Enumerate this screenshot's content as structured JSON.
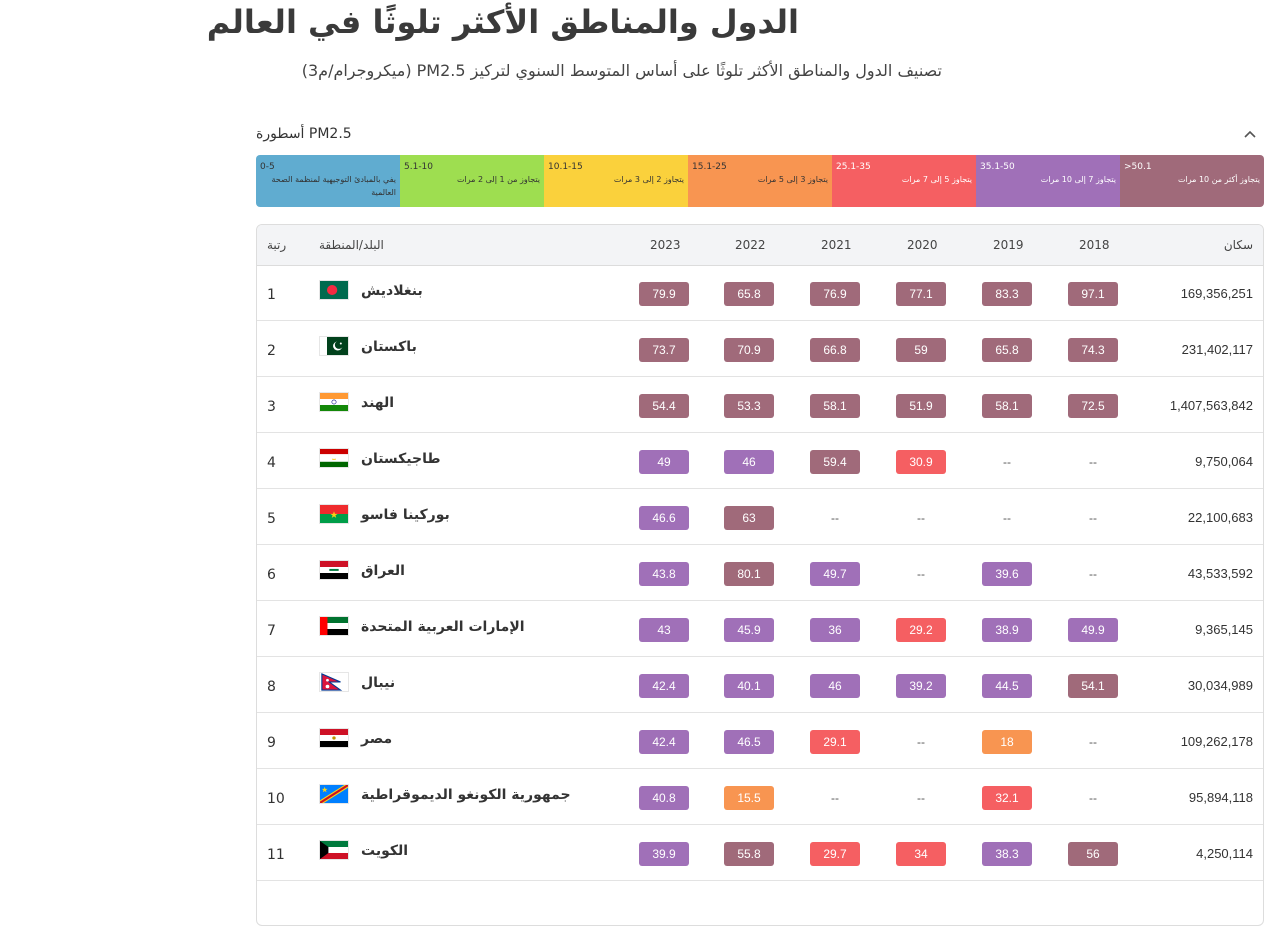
{
  "page": {
    "title": "الدول والمناطق الأكثر تلوثًا في العالم",
    "subtitle": "تصنيف الدول والمناطق الأكثر تلوثًا على أساس المتوسط السنوي لتركيز PM2.5 (ميكروجرام/م3)"
  },
  "legend": {
    "title": "PM2.5 أسطورة",
    "toggle_icon": "chevron-up-icon",
    "segments": [
      {
        "range": "0-5",
        "desc": "يفي بالمبادئ التوجيهية لمنظمة الصحة العالمية",
        "color": "#60acd0"
      },
      {
        "range": "5.1-10",
        "desc": "يتجاوز من 1 إلى 2 مرات",
        "color": "#9ede50"
      },
      {
        "range": "10.1-15",
        "desc": "يتجاوز 2 إلى 3 مرات",
        "color": "#fad13c"
      },
      {
        "range": "15.1-25",
        "desc": "يتجاوز 3 إلى 5 مرات",
        "color": "#f89551"
      },
      {
        "range": "25.1-35",
        "desc": "يتجاوز 5 إلى 7 مرات",
        "color": "#f55f62"
      },
      {
        "range": "35.1-50",
        "desc": "يتجاوز 7 إلى 10 مرات",
        "color": "#a070b8"
      },
      {
        "range": ">50.1",
        "desc": "يتجاوز أكثر من 10 مرات",
        "color": "#a06a7a"
      }
    ]
  },
  "table": {
    "headers": {
      "rank": "رتبة",
      "country": "البلد/المنطقة",
      "y2023": "2023",
      "y2022": "2022",
      "y2021": "2021",
      "y2020": "2020",
      "y2019": "2019",
      "y2018": "2018",
      "population": "سكان"
    },
    "rows": [
      {
        "rank": "1",
        "country": "بنغلاديش",
        "flag": "bangladesh-flag-icon",
        "values": [
          "79.9",
          "65.8",
          "76.9",
          "77.1",
          "83.3",
          "97.1"
        ],
        "population": "169,356,251"
      },
      {
        "rank": "2",
        "country": "باكستان",
        "flag": "pakistan-flag-icon",
        "values": [
          "73.7",
          "70.9",
          "66.8",
          "59",
          "65.8",
          "74.3"
        ],
        "population": "231,402,117"
      },
      {
        "rank": "3",
        "country": "الهند",
        "flag": "india-flag-icon",
        "values": [
          "54.4",
          "53.3",
          "58.1",
          "51.9",
          "58.1",
          "72.5"
        ],
        "population": "1,407,563,842"
      },
      {
        "rank": "4",
        "country": "طاجيكستان",
        "flag": "tajikistan-flag-icon",
        "values": [
          "49",
          "46",
          "59.4",
          "30.9",
          "--",
          "--"
        ],
        "population": "9,750,064"
      },
      {
        "rank": "5",
        "country": "بوركينا فاسو",
        "flag": "burkina-faso-flag-icon",
        "values": [
          "46.6",
          "63",
          "--",
          "--",
          "--",
          "--"
        ],
        "population": "22,100,683"
      },
      {
        "rank": "6",
        "country": "العراق",
        "flag": "iraq-flag-icon",
        "values": [
          "43.8",
          "80.1",
          "49.7",
          "--",
          "39.6",
          "--"
        ],
        "population": "43,533,592"
      },
      {
        "rank": "7",
        "country": "الإمارات العربية المتحدة",
        "flag": "uae-flag-icon",
        "values": [
          "43",
          "45.9",
          "36",
          "29.2",
          "38.9",
          "49.9"
        ],
        "population": "9,365,145"
      },
      {
        "rank": "8",
        "country": "نيبال",
        "flag": "nepal-flag-icon",
        "values": [
          "42.4",
          "40.1",
          "46",
          "39.2",
          "44.5",
          "54.1"
        ],
        "population": "30,034,989"
      },
      {
        "rank": "9",
        "country": "مصر",
        "flag": "egypt-flag-icon",
        "values": [
          "42.4",
          "46.5",
          "29.1",
          "--",
          "18",
          "--"
        ],
        "population": "109,262,178"
      },
      {
        "rank": "10",
        "country": "جمهورية الكونغو الديموقراطية",
        "flag": "dr-congo-flag-icon",
        "values": [
          "40.8",
          "15.5",
          "--",
          "--",
          "32.1",
          "--"
        ],
        "population": "95,894,118"
      },
      {
        "rank": "11",
        "country": "الكويت",
        "flag": "kuwait-flag-icon",
        "values": [
          "39.9",
          "55.8",
          "29.7",
          "34",
          "38.3",
          "56"
        ],
        "population": "4,250,114"
      }
    ]
  }
}
